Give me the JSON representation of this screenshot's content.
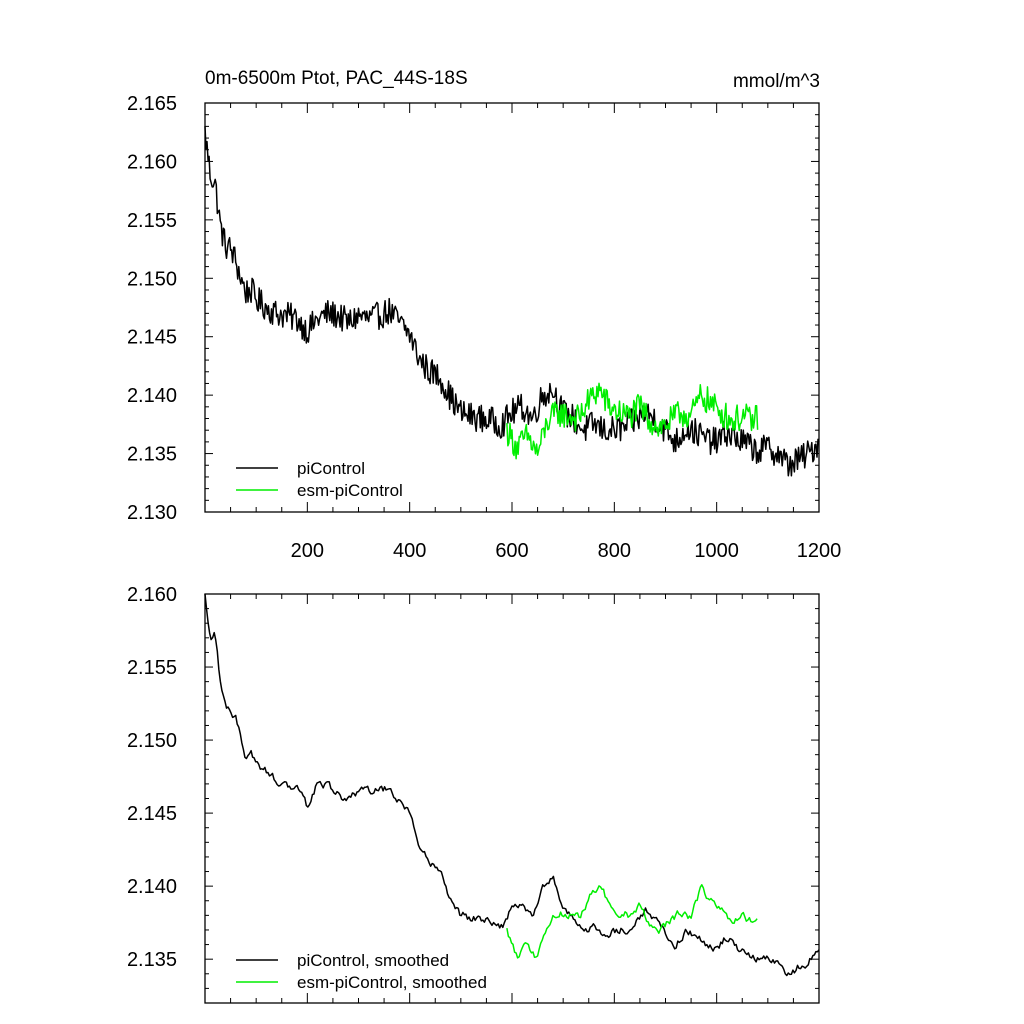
{
  "figure": {
    "title_left": "0m-6500m Ptot, PAC_44S-18S",
    "title_right": "mmol/m^3",
    "colors": {
      "piControl": "#000000",
      "esm_piControl": "#00ee00",
      "axis": "#000000"
    }
  },
  "chart_data": [
    {
      "type": "line",
      "id": "raw",
      "title": "0m-6500m Ptot, PAC_44S-18S",
      "units_label": "mmol/m^3",
      "xlabel": "",
      "ylabel": "",
      "xlim": [
        0,
        1200
      ],
      "ylim": [
        2.13,
        2.165
      ],
      "xticks": [
        200,
        400,
        600,
        800,
        1000,
        1200
      ],
      "yticks": [
        2.13,
        2.135,
        2.14,
        2.145,
        2.15,
        2.155,
        2.16,
        2.165
      ],
      "ytick_labels": [
        "2.130",
        "2.135",
        "2.140",
        "2.145",
        "2.150",
        "2.155",
        "2.160",
        "2.165"
      ],
      "xtick_labels": [
        "200",
        "400",
        "600",
        "800",
        "1000",
        "1200"
      ],
      "legend_position": "bottom-left",
      "grid": false,
      "series": [
        {
          "name": "piControl",
          "color": "#000000",
          "points": [
            [
              0,
              2.1625
            ],
            [
              10,
              2.159
            ],
            [
              20,
              2.158
            ],
            [
              30,
              2.1545
            ],
            [
              40,
              2.1528
            ],
            [
              50,
              2.1525
            ],
            [
              60,
              2.1515
            ],
            [
              70,
              2.15
            ],
            [
              80,
              2.1488
            ],
            [
              90,
              2.149
            ],
            [
              100,
              2.1482
            ],
            [
              120,
              2.1475
            ],
            [
              140,
              2.147
            ],
            [
              160,
              2.1468
            ],
            [
              180,
              2.1465
            ],
            [
              200,
              2.1455
            ],
            [
              220,
              2.1465
            ],
            [
              240,
              2.147
            ],
            [
              260,
              2.1468
            ],
            [
              280,
              2.1462
            ],
            [
              300,
              2.1468
            ],
            [
              320,
              2.1465
            ],
            [
              340,
              2.1468
            ],
            [
              360,
              2.1472
            ],
            [
              380,
              2.1462
            ],
            [
              400,
              2.1452
            ],
            [
              420,
              2.143
            ],
            [
              440,
              2.142
            ],
            [
              460,
              2.1415
            ],
            [
              480,
              2.1398
            ],
            [
              500,
              2.1385
            ],
            [
              520,
              2.1382
            ],
            [
              540,
              2.138
            ],
            [
              560,
              2.1378
            ],
            [
              580,
              2.1375
            ],
            [
              600,
              2.1385
            ],
            [
              620,
              2.139
            ],
            [
              640,
              2.138
            ],
            [
              660,
              2.14
            ],
            [
              680,
              2.1405
            ],
            [
              700,
              2.1385
            ],
            [
              720,
              2.138
            ],
            [
              740,
              2.137
            ],
            [
              760,
              2.1375
            ],
            [
              780,
              2.137
            ],
            [
              800,
              2.137
            ],
            [
              820,
              2.1372
            ],
            [
              840,
              2.1378
            ],
            [
              860,
              2.1385
            ],
            [
              880,
              2.138
            ],
            [
              900,
              2.137
            ],
            [
              920,
              2.136
            ],
            [
              940,
              2.1372
            ],
            [
              960,
              2.1368
            ],
            [
              980,
              2.1362
            ],
            [
              1000,
              2.136
            ],
            [
              1020,
              2.1368
            ],
            [
              1040,
              2.1362
            ],
            [
              1060,
              2.1358
            ],
            [
              1080,
              2.1352
            ],
            [
              1100,
              2.1355
            ],
            [
              1120,
              2.135
            ],
            [
              1140,
              2.134
            ],
            [
              1160,
              2.1345
            ],
            [
              1180,
              2.135
            ],
            [
              1200,
              2.136
            ]
          ]
        },
        {
          "name": "esm-piControl",
          "color": "#00ee00",
          "points": [
            [
              590,
              2.137
            ],
            [
              610,
              2.1355
            ],
            [
              630,
              2.1365
            ],
            [
              650,
              2.135
            ],
            [
              670,
              2.1378
            ],
            [
              690,
              2.1385
            ],
            [
              710,
              2.1382
            ],
            [
              730,
              2.138
            ],
            [
              750,
              2.1395
            ],
            [
              770,
              2.1405
            ],
            [
              790,
              2.139
            ],
            [
              810,
              2.1385
            ],
            [
              830,
              2.1382
            ],
            [
              850,
              2.139
            ],
            [
              870,
              2.1378
            ],
            [
              890,
              2.1372
            ],
            [
              910,
              2.1378
            ],
            [
              930,
              2.1385
            ],
            [
              950,
              2.1382
            ],
            [
              970,
              2.14
            ],
            [
              990,
              2.1392
            ],
            [
              1010,
              2.1385
            ],
            [
              1030,
              2.1378
            ],
            [
              1050,
              2.1382
            ],
            [
              1070,
              2.1378
            ],
            [
              1080,
              2.1382
            ]
          ]
        }
      ]
    },
    {
      "type": "line",
      "id": "smoothed",
      "title": "",
      "xlabel": "",
      "ylabel": "",
      "xlim": [
        0,
        1200
      ],
      "ylim": [
        2.132,
        2.16
      ],
      "xticks": [
        200,
        400,
        600,
        800,
        1000,
        1200
      ],
      "yticks": [
        2.135,
        2.14,
        2.145,
        2.15,
        2.155,
        2.16
      ],
      "ytick_labels": [
        "2.135",
        "2.140",
        "2.145",
        "2.150",
        "2.155",
        "2.160"
      ],
      "legend_position": "bottom-left",
      "grid": false,
      "series": [
        {
          "name": "piControl, smoothed",
          "color": "#000000",
          "points": [
            [
              0,
              2.16
            ],
            [
              10,
              2.157
            ],
            [
              20,
              2.1572
            ],
            [
              30,
              2.154
            ],
            [
              40,
              2.1522
            ],
            [
              50,
              2.152
            ],
            [
              60,
              2.1515
            ],
            [
              70,
              2.1502
            ],
            [
              80,
              2.1488
            ],
            [
              90,
              2.149
            ],
            [
              100,
              2.1485
            ],
            [
              120,
              2.1478
            ],
            [
              140,
              2.1472
            ],
            [
              160,
              2.147
            ],
            [
              180,
              2.1468
            ],
            [
              200,
              2.1455
            ],
            [
              220,
              2.147
            ],
            [
              240,
              2.147
            ],
            [
              260,
              2.1462
            ],
            [
              280,
              2.1458
            ],
            [
              300,
              2.1465
            ],
            [
              320,
              2.1465
            ],
            [
              340,
              2.1465
            ],
            [
              360,
              2.1468
            ],
            [
              380,
              2.1458
            ],
            [
              400,
              2.1448
            ],
            [
              420,
              2.1425
            ],
            [
              440,
              2.1418
            ],
            [
              460,
              2.141
            ],
            [
              480,
              2.139
            ],
            [
              500,
              2.138
            ],
            [
              520,
              2.1378
            ],
            [
              540,
              2.1378
            ],
            [
              560,
              2.1375
            ],
            [
              580,
              2.1372
            ],
            [
              600,
              2.1385
            ],
            [
              620,
              2.1388
            ],
            [
              640,
              2.1378
            ],
            [
              660,
              2.14
            ],
            [
              680,
              2.1405
            ],
            [
              700,
              2.1385
            ],
            [
              720,
              2.1378
            ],
            [
              740,
              2.1368
            ],
            [
              760,
              2.1372
            ],
            [
              780,
              2.1368
            ],
            [
              800,
              2.137
            ],
            [
              820,
              2.137
            ],
            [
              840,
              2.1375
            ],
            [
              860,
              2.1383
            ],
            [
              880,
              2.1378
            ],
            [
              900,
              2.1368
            ],
            [
              920,
              2.136
            ],
            [
              940,
              2.137
            ],
            [
              960,
              2.1366
            ],
            [
              980,
              2.136
            ],
            [
              1000,
              2.1358
            ],
            [
              1020,
              2.1365
            ],
            [
              1040,
              2.1358
            ],
            [
              1060,
              2.1355
            ],
            [
              1080,
              2.135
            ],
            [
              1100,
              2.1352
            ],
            [
              1120,
              2.1348
            ],
            [
              1140,
              2.134
            ],
            [
              1160,
              2.1345
            ],
            [
              1180,
              2.1348
            ],
            [
              1200,
              2.1358
            ]
          ]
        },
        {
          "name": "esm-piControl, smoothed",
          "color": "#00ee00",
          "points": [
            [
              590,
              2.137
            ],
            [
              610,
              2.1352
            ],
            [
              630,
              2.1362
            ],
            [
              650,
              2.135
            ],
            [
              670,
              2.1375
            ],
            [
              690,
              2.1382
            ],
            [
              710,
              2.138
            ],
            [
              730,
              2.1378
            ],
            [
              750,
              2.1392
            ],
            [
              770,
              2.1402
            ],
            [
              790,
              2.1388
            ],
            [
              810,
              2.1382
            ],
            [
              830,
              2.138
            ],
            [
              850,
              2.1388
            ],
            [
              870,
              2.1375
            ],
            [
              890,
              2.137
            ],
            [
              910,
              2.1376
            ],
            [
              930,
              2.1382
            ],
            [
              950,
              2.138
            ],
            [
              970,
              2.1398
            ],
            [
              990,
              2.139
            ],
            [
              1010,
              2.1382
            ],
            [
              1030,
              2.1375
            ],
            [
              1050,
              2.138
            ],
            [
              1070,
              2.1376
            ],
            [
              1080,
              2.1378
            ]
          ]
        }
      ]
    }
  ]
}
